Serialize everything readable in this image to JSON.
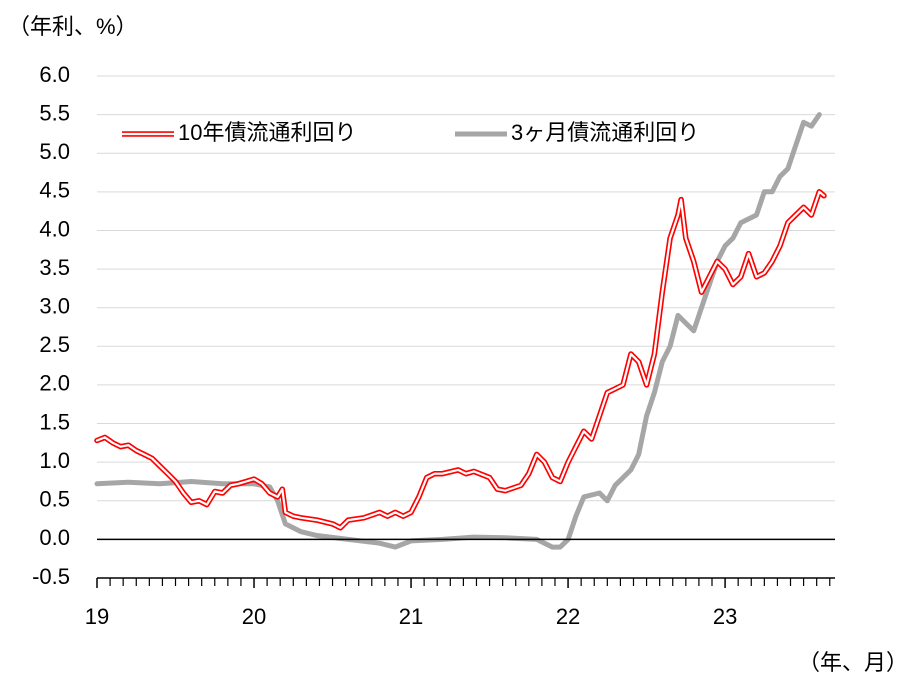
{
  "chart_data": {
    "type": "line",
    "y_unit_label": "（年利、%）",
    "x_unit_label": "（年、月）",
    "xlim": [
      19,
      23.7
    ],
    "xticks": [
      19,
      20,
      21,
      22,
      23
    ],
    "ylim": [
      -0.5,
      6
    ],
    "yticks": [
      -0.5,
      {
        "value": 0,
        "label": "0.0"
      },
      0.5,
      {
        "value": 1,
        "label": "1.0"
      },
      1.5,
      {
        "value": 2,
        "label": "2.0"
      },
      2.5,
      {
        "value": 3,
        "label": "3.0"
      },
      3.5,
      {
        "value": 4,
        "label": "4.0"
      },
      4.5,
      {
        "value": 5,
        "label": "5.0"
      },
      5.5,
      {
        "value": 6,
        "label": "6.0"
      }
    ],
    "grid": true,
    "legend": "top",
    "series": [
      {
        "name": "10年債流通利回り",
        "color": "#ff0000",
        "line_style": "double",
        "x": [
          19.0,
          19.05,
          19.1,
          19.15,
          19.2,
          19.25,
          19.3,
          19.35,
          19.4,
          19.45,
          19.5,
          19.55,
          19.6,
          19.65,
          19.7,
          19.75,
          19.8,
          19.85,
          19.9,
          19.95,
          20.0,
          20.05,
          20.1,
          20.15,
          20.18,
          20.2,
          20.25,
          20.3,
          20.4,
          20.5,
          20.55,
          20.6,
          20.7,
          20.8,
          20.85,
          20.9,
          20.95,
          21.0,
          21.05,
          21.1,
          21.15,
          21.2,
          21.3,
          21.35,
          21.4,
          21.5,
          21.55,
          21.6,
          21.7,
          21.75,
          21.8,
          21.85,
          21.9,
          21.95,
          22.0,
          22.05,
          22.1,
          22.15,
          22.2,
          22.25,
          22.3,
          22.35,
          22.4,
          22.45,
          22.5,
          22.55,
          22.6,
          22.65,
          22.7,
          22.72,
          22.75,
          22.8,
          22.85,
          22.9,
          22.95,
          23.0,
          23.05,
          23.1,
          23.15,
          23.2,
          23.25,
          23.3,
          23.35,
          23.4,
          23.45,
          23.5,
          23.55,
          23.6,
          23.63
        ],
        "values": [
          1.28,
          1.32,
          1.25,
          1.2,
          1.22,
          1.15,
          1.1,
          1.05,
          0.95,
          0.85,
          0.75,
          0.6,
          0.48,
          0.5,
          0.45,
          0.62,
          0.6,
          0.7,
          0.72,
          0.75,
          0.78,
          0.72,
          0.6,
          0.55,
          0.65,
          0.35,
          0.3,
          0.28,
          0.25,
          0.2,
          0.15,
          0.25,
          0.28,
          0.35,
          0.3,
          0.35,
          0.3,
          0.35,
          0.55,
          0.8,
          0.85,
          0.85,
          0.9,
          0.85,
          0.88,
          0.8,
          0.65,
          0.63,
          0.7,
          0.85,
          1.1,
          1.0,
          0.8,
          0.75,
          1.0,
          1.2,
          1.4,
          1.3,
          1.6,
          1.9,
          1.95,
          2.0,
          2.4,
          2.3,
          2.0,
          2.4,
          3.2,
          3.9,
          4.2,
          4.4,
          3.9,
          3.6,
          3.2,
          3.4,
          3.6,
          3.5,
          3.3,
          3.4,
          3.7,
          3.4,
          3.45,
          3.6,
          3.8,
          4.1,
          4.2,
          4.3,
          4.2,
          4.5,
          4.45
        ]
      },
      {
        "name": "3ヶ月債流通利回り",
        "color": "#a6a6a6",
        "line_style": "solid",
        "x": [
          19.0,
          19.2,
          19.4,
          19.6,
          19.8,
          20.0,
          20.1,
          20.15,
          20.2,
          20.3,
          20.4,
          20.6,
          20.8,
          20.9,
          21.0,
          21.2,
          21.4,
          21.6,
          21.8,
          21.9,
          21.95,
          22.0,
          22.05,
          22.1,
          22.2,
          22.25,
          22.3,
          22.4,
          22.45,
          22.5,
          22.55,
          22.6,
          22.65,
          22.7,
          22.75,
          22.8,
          22.85,
          22.9,
          22.95,
          23.0,
          23.05,
          23.1,
          23.2,
          23.25,
          23.3,
          23.35,
          23.4,
          23.45,
          23.5,
          23.55,
          23.6
        ],
        "values": [
          0.72,
          0.74,
          0.72,
          0.75,
          0.72,
          0.72,
          0.68,
          0.5,
          0.2,
          0.1,
          0.05,
          0.0,
          -0.05,
          -0.1,
          -0.02,
          0.0,
          0.03,
          0.02,
          0.0,
          -0.1,
          -0.1,
          0.0,
          0.3,
          0.55,
          0.6,
          0.5,
          0.7,
          0.9,
          1.1,
          1.6,
          1.9,
          2.3,
          2.5,
          2.9,
          2.8,
          2.7,
          3.0,
          3.3,
          3.6,
          3.8,
          3.9,
          4.1,
          4.2,
          4.5,
          4.5,
          4.7,
          4.8,
          5.1,
          5.4,
          5.35,
          5.5
        ]
      }
    ]
  }
}
